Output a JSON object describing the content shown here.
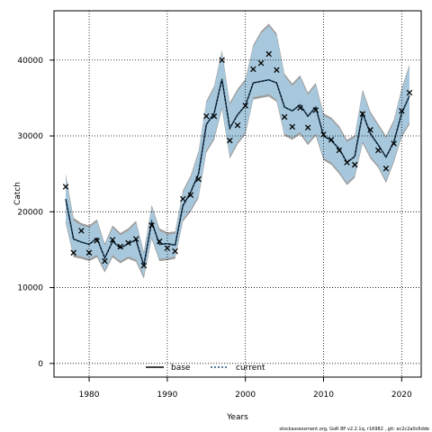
{
  "chart_data": {
    "type": "line",
    "title": "",
    "xlabel": "Years",
    "ylabel": "Catch",
    "xlim": [
      1975.5,
      2022.5
    ],
    "ylim": [
      -1800,
      46500
    ],
    "x_ticks": [
      1980,
      1990,
      2000,
      2010,
      2020
    ],
    "y_ticks": [
      0,
      10000,
      20000,
      30000,
      40000
    ],
    "grid": true,
    "legend_placement": "bottom-center",
    "x": [
      1977,
      1978,
      1979,
      1980,
      1981,
      1982,
      1983,
      1984,
      1985,
      1986,
      1987,
      1988,
      1989,
      1990,
      1991,
      1992,
      1993,
      1994,
      1995,
      1996,
      1997,
      1998,
      1999,
      2000,
      2001,
      2002,
      2003,
      2004,
      2005,
      2006,
      2007,
      2008,
      2009,
      2010,
      2011,
      2012,
      2013,
      2014,
      2015,
      2016,
      2017,
      2018,
      2019,
      2020,
      2021
    ],
    "series": [
      {
        "name": "base",
        "style": "solid",
        "color": "#000000",
        "values": [
          21700,
          16400,
          16000,
          15700,
          16500,
          13900,
          16100,
          15200,
          15800,
          16300,
          12900,
          18700,
          15700,
          15800,
          15600,
          20800,
          22600,
          25000,
          31500,
          33000,
          37500,
          31000,
          32800,
          34000,
          37000,
          37200,
          37400,
          37000,
          33800,
          33300,
          34100,
          32600,
          33800,
          30000,
          29400,
          28300,
          26500,
          27300,
          33000,
          30300,
          28800,
          27200,
          29200,
          33000,
          35300
        ]
      },
      {
        "name": "current",
        "style": "dotted",
        "color": "#1f4e79",
        "values": [
          21700,
          16400,
          16000,
          15700,
          16500,
          13900,
          16100,
          15200,
          15800,
          16300,
          12900,
          18700,
          15700,
          15800,
          15600,
          20800,
          22600,
          25000,
          31500,
          33000,
          37500,
          31000,
          32800,
          34000,
          37000,
          37200,
          37400,
          37000,
          33800,
          33300,
          34100,
          32600,
          33800,
          30000,
          29400,
          28300,
          26500,
          27300,
          33000,
          30300,
          28800,
          27200,
          29200,
          33000,
          35300
        ]
      }
    ],
    "observed": {
      "marker": "x",
      "values": [
        23300,
        14600,
        17500,
        14600,
        16200,
        13500,
        16300,
        15400,
        15900,
        16400,
        12900,
        18200,
        16100,
        15200,
        14800,
        21700,
        22200,
        24300,
        32600,
        32600,
        40000,
        29400,
        31400,
        34000,
        38800,
        39600,
        40800,
        38700,
        32500,
        31200,
        33700,
        31100,
        33400,
        30200,
        29500,
        28100,
        26500,
        26200,
        32900,
        30800,
        28100,
        25700,
        29000,
        33300,
        35700
      ]
    },
    "bands": [
      {
        "name": "base",
        "color": "#9e9e9e",
        "lower": [
          18500,
          14000,
          13800,
          13500,
          14000,
          12000,
          14000,
          13200,
          13800,
          13400,
          11200,
          16400,
          13500,
          13600,
          13800,
          18700,
          20000,
          21800,
          27800,
          29500,
          33500,
          27000,
          28900,
          30200,
          34800,
          35000,
          35200,
          34500,
          30000,
          29500,
          30200,
          28800,
          30000,
          26800,
          26200,
          25000,
          23500,
          24500,
          29000,
          27000,
          25800,
          23800,
          26500,
          29800,
          31500
        ],
        "upper": [
          25000,
          19200,
          18500,
          18200,
          19000,
          15800,
          18200,
          17200,
          17800,
          18800,
          14700,
          20900,
          17800,
          17300,
          17400,
          22800,
          24800,
          28000,
          34600,
          36600,
          41300,
          34400,
          36200,
          37500,
          42000,
          43800,
          44800,
          43500,
          38200,
          36900,
          38000,
          35700,
          37000,
          33000,
          32400,
          31300,
          29500,
          30100,
          36100,
          33200,
          31600,
          30000,
          32100,
          36300,
          39400
        ]
      },
      {
        "name": "current",
        "color": "#a7c8dc",
        "lower": [
          18900,
          14300,
          14100,
          13800,
          14300,
          12300,
          14300,
          13500,
          14100,
          13700,
          11600,
          16700,
          13800,
          13900,
          14100,
          19000,
          20300,
          22100,
          28100,
          29800,
          33800,
          27300,
          29200,
          30500,
          35100,
          35300,
          35500,
          34800,
          30300,
          29800,
          30500,
          29100,
          30300,
          27100,
          26500,
          25300,
          23800,
          24800,
          29300,
          27300,
          26100,
          24100,
          26800,
          30100,
          31800
        ],
        "upper": [
          24600,
          18800,
          18200,
          17900,
          18700,
          15500,
          17900,
          16900,
          17500,
          18500,
          14400,
          20600,
          17500,
          17000,
          17100,
          22500,
          24500,
          27700,
          34300,
          36300,
          41000,
          34100,
          35900,
          37200,
          41700,
          43500,
          44500,
          43200,
          37900,
          36600,
          37700,
          35400,
          36700,
          32700,
          32100,
          31000,
          29200,
          29800,
          35800,
          32900,
          31300,
          29700,
          31800,
          36000,
          39100
        ]
      }
    ]
  },
  "legend": {
    "items": [
      {
        "label": "base"
      },
      {
        "label": "current"
      }
    ]
  },
  "footer": {
    "text": "stockassessment.org, GoR 8P v2.2.1q, r16982 , git: ec2c2a0c6dde"
  }
}
